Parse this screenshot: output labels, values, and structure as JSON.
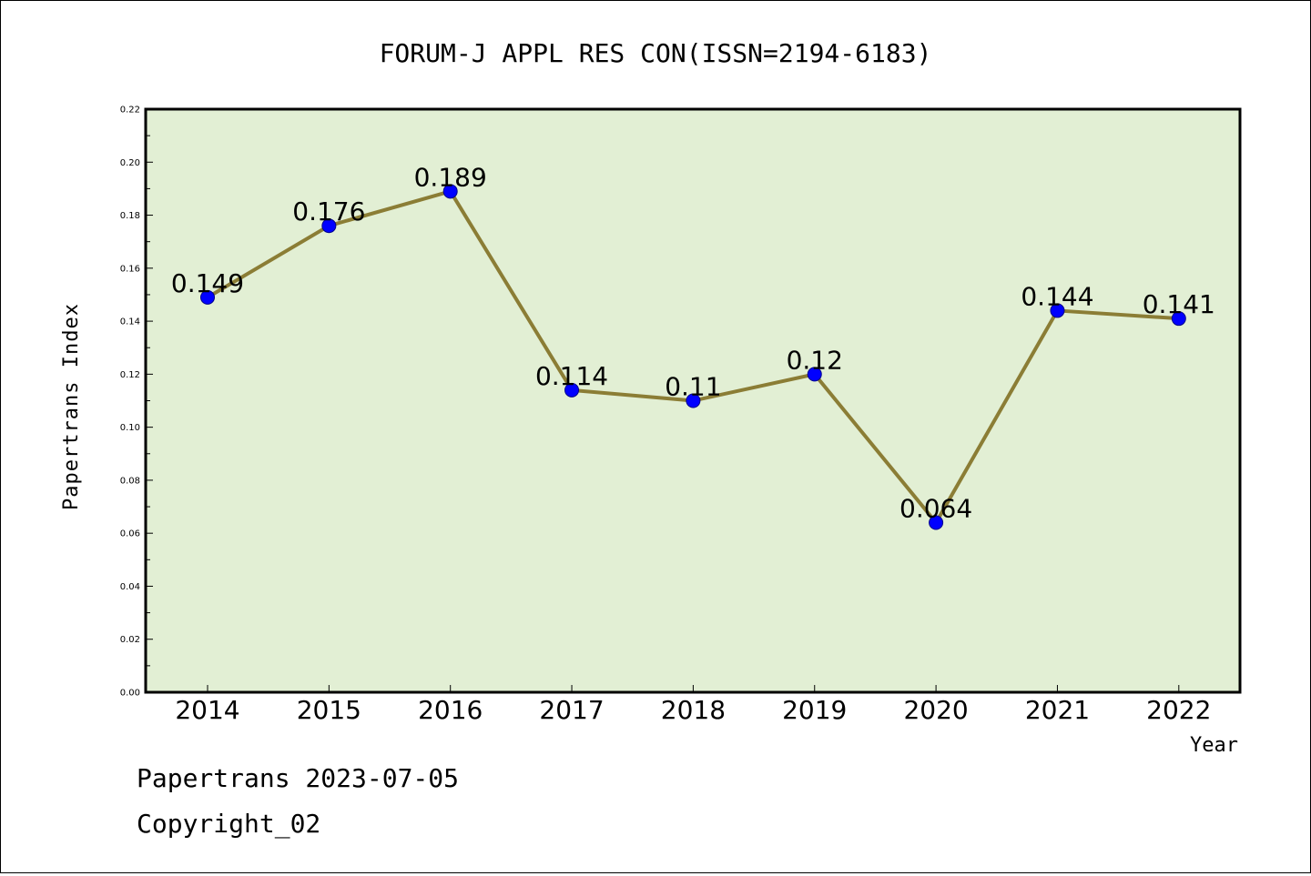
{
  "chart_data": {
    "type": "line",
    "title": "FORUM-J APPL RES CON(ISSN=2194-6183)",
    "xlabel": "Year",
    "ylabel": "Papertrans Index",
    "categories": [
      "2014",
      "2015",
      "2016",
      "2017",
      "2018",
      "2019",
      "2020",
      "2021",
      "2022"
    ],
    "values": [
      0.149,
      0.176,
      0.189,
      0.114,
      0.11,
      0.12,
      0.064,
      0.144,
      0.141
    ],
    "data_labels": [
      "0.149",
      "0.176",
      "0.189",
      "0.114",
      "0.11",
      "0.12",
      "0.064",
      "0.144",
      "0.141"
    ],
    "ylim": [
      0,
      0.22
    ],
    "yticks": [
      "0.00",
      "0.02",
      "0.04",
      "0.06",
      "0.08",
      "0.10",
      "0.12",
      "0.14",
      "0.16",
      "0.18",
      "0.20",
      "0.22"
    ],
    "grid": false,
    "legend": "none",
    "colors": {
      "plot_background": "#e2efd4",
      "line": "#8b7d35",
      "marker": "#0000ff"
    }
  },
  "footer": {
    "line1": "Papertrans 2023-07-05",
    "line2": "Copyright_02"
  }
}
